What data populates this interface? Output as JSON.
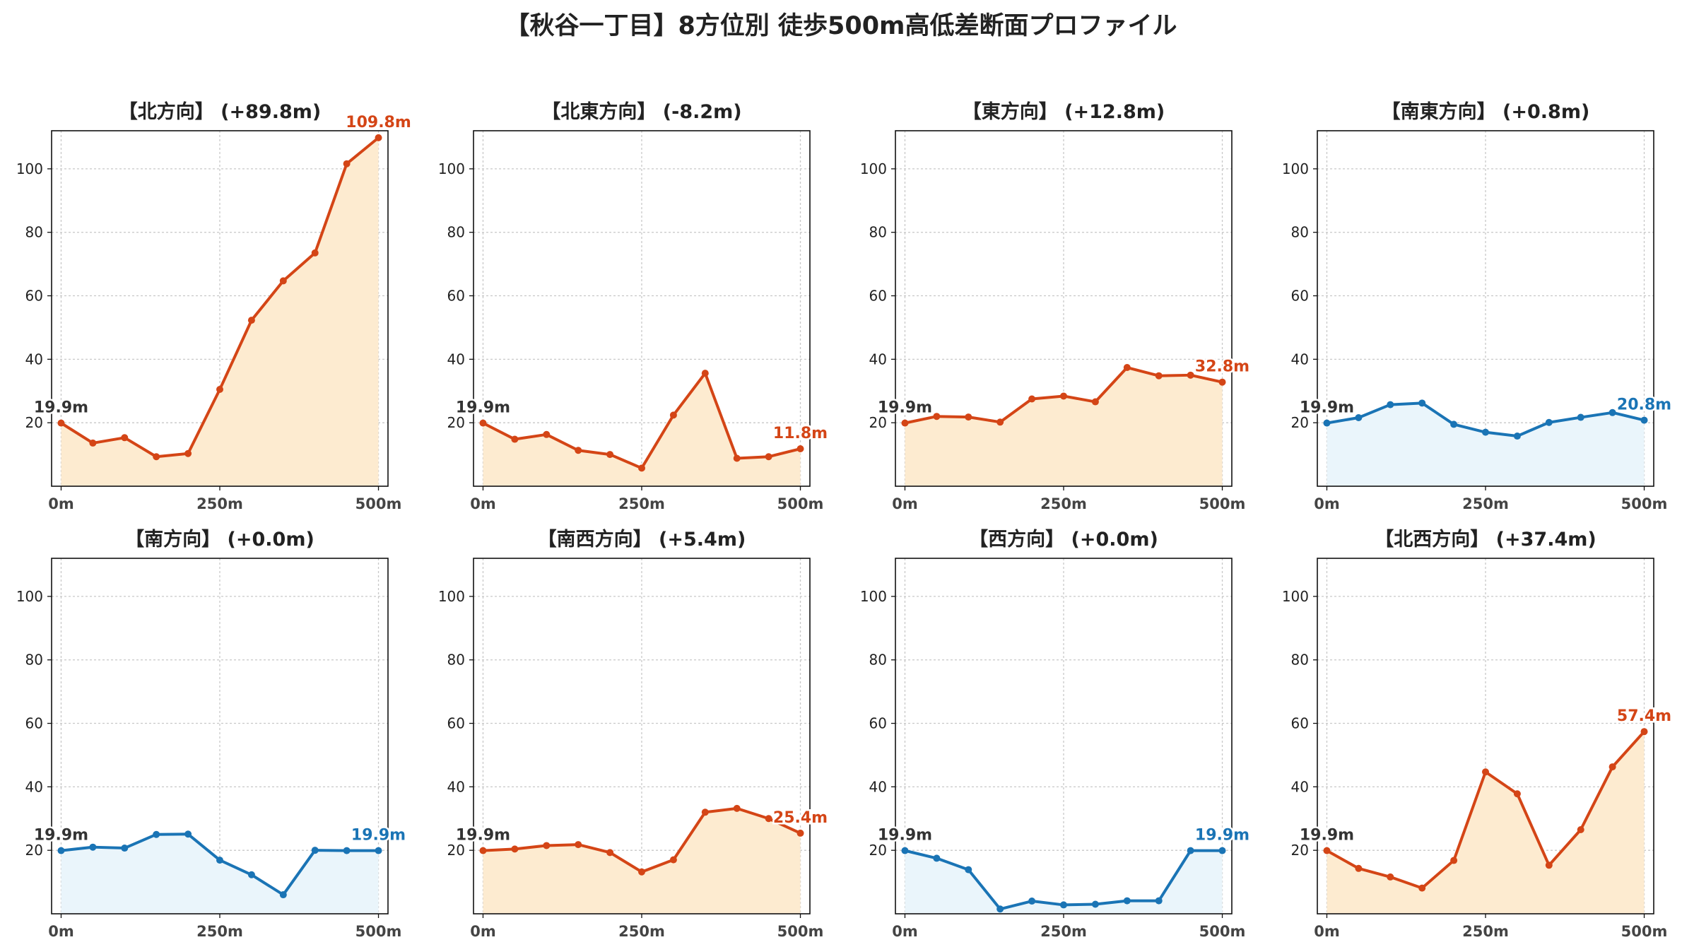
{
  "title": "【秋谷一丁目】8方位別 徒歩500m高低差断面プロファイル",
  "colors": {
    "up_line": "#d44516",
    "up_fill": "#fdebd0",
    "flat_line": "#1a74b5",
    "flat_fill": "#eaf5fb",
    "label_start": "#333333",
    "grid": "#c8c8c8",
    "axis": "#111111"
  },
  "chart_data": [
    {
      "type": "area",
      "title": "【北方向】 (+89.8m)",
      "trend": "up",
      "x": [
        0,
        50,
        100,
        150,
        200,
        250,
        300,
        350,
        400,
        450,
        500
      ],
      "y": [
        19.9,
        13.6,
        15.3,
        9.3,
        10.3,
        30.5,
        52.3,
        64.7,
        73.5,
        101.6,
        109.8
      ],
      "start_label": "19.9m",
      "end_label": "109.8m",
      "xticks": [
        "0m",
        "250m",
        "500m"
      ],
      "yticks": [
        20,
        40,
        60,
        80,
        100
      ],
      "xlim": [
        -15,
        515
      ],
      "ylim": [
        0,
        112
      ],
      "grid": true
    },
    {
      "type": "area",
      "title": "【北東方向】 (-8.2m)",
      "trend": "up",
      "x": [
        0,
        50,
        100,
        150,
        200,
        250,
        300,
        350,
        400,
        450,
        500
      ],
      "y": [
        19.9,
        14.8,
        16.3,
        11.3,
        10.0,
        5.7,
        22.4,
        35.6,
        8.8,
        9.3,
        11.8
      ],
      "start_label": "19.9m",
      "end_label": "11.8m",
      "xticks": [
        "0m",
        "250m",
        "500m"
      ],
      "yticks": [
        20,
        40,
        60,
        80,
        100
      ],
      "xlim": [
        -15,
        515
      ],
      "ylim": [
        0,
        112
      ],
      "grid": true
    },
    {
      "type": "area",
      "title": "【東方向】 (+12.8m)",
      "trend": "up",
      "x": [
        0,
        50,
        100,
        150,
        200,
        250,
        300,
        350,
        400,
        450,
        500
      ],
      "y": [
        19.9,
        22.0,
        21.8,
        20.2,
        27.5,
        28.4,
        26.6,
        37.4,
        34.8,
        35.0,
        32.8
      ],
      "start_label": "19.9m",
      "end_label": "32.8m",
      "xticks": [
        "0m",
        "250m",
        "500m"
      ],
      "yticks": [
        20,
        40,
        60,
        80,
        100
      ],
      "xlim": [
        -15,
        515
      ],
      "ylim": [
        0,
        112
      ],
      "grid": true
    },
    {
      "type": "area",
      "title": "【南東方向】 (+0.8m)",
      "trend": "flat",
      "x": [
        0,
        50,
        100,
        150,
        200,
        250,
        300,
        350,
        400,
        450,
        500
      ],
      "y": [
        19.9,
        21.6,
        25.7,
        26.2,
        19.5,
        17.0,
        15.8,
        20.1,
        21.7,
        23.2,
        20.8
      ],
      "start_label": "19.9m",
      "end_label": "20.8m",
      "xticks": [
        "0m",
        "250m",
        "500m"
      ],
      "yticks": [
        20,
        40,
        60,
        80,
        100
      ],
      "xlim": [
        -15,
        515
      ],
      "ylim": [
        0,
        112
      ],
      "grid": true
    },
    {
      "type": "area",
      "title": "【南方向】 (+0.0m)",
      "trend": "flat",
      "x": [
        0,
        50,
        100,
        150,
        200,
        250,
        300,
        350,
        400,
        450,
        500
      ],
      "y": [
        19.9,
        21.0,
        20.7,
        25.0,
        25.1,
        16.9,
        12.3,
        6.0,
        20.0,
        19.9,
        19.9
      ],
      "start_label": "19.9m",
      "end_label": "19.9m",
      "xticks": [
        "0m",
        "250m",
        "500m"
      ],
      "yticks": [
        20,
        40,
        60,
        80,
        100
      ],
      "xlim": [
        -15,
        515
      ],
      "ylim": [
        0,
        112
      ],
      "grid": true
    },
    {
      "type": "area",
      "title": "【南西方向】 (+5.4m)",
      "trend": "up",
      "x": [
        0,
        50,
        100,
        150,
        200,
        250,
        300,
        350,
        400,
        450,
        500
      ],
      "y": [
        19.9,
        20.4,
        21.5,
        21.8,
        19.3,
        13.2,
        17.0,
        32.0,
        33.2,
        30.0,
        25.4
      ],
      "start_label": "19.9m",
      "end_label": "25.4m",
      "xticks": [
        "0m",
        "250m",
        "500m"
      ],
      "yticks": [
        20,
        40,
        60,
        80,
        100
      ],
      "xlim": [
        -15,
        515
      ],
      "ylim": [
        0,
        112
      ],
      "grid": true
    },
    {
      "type": "area",
      "title": "【西方向】 (+0.0m)",
      "trend": "flat",
      "x": [
        0,
        50,
        100,
        150,
        200,
        250,
        300,
        350,
        400,
        450,
        500
      ],
      "y": [
        19.9,
        17.5,
        13.9,
        1.5,
        4.0,
        2.8,
        3.0,
        4.1,
        4.1,
        19.9,
        19.9
      ],
      "start_label": "19.9m",
      "end_label": "19.9m",
      "xticks": [
        "0m",
        "250m",
        "500m"
      ],
      "yticks": [
        20,
        40,
        60,
        80,
        100
      ],
      "xlim": [
        -15,
        515
      ],
      "ylim": [
        0,
        112
      ],
      "grid": true
    },
    {
      "type": "area",
      "title": "【北西方向】 (+37.4m)",
      "trend": "up",
      "x": [
        0,
        50,
        100,
        150,
        200,
        250,
        300,
        350,
        400,
        450,
        500
      ],
      "y": [
        19.9,
        14.3,
        11.6,
        8.1,
        16.8,
        44.7,
        37.8,
        15.3,
        26.5,
        46.3,
        57.4
      ],
      "start_label": "19.9m",
      "end_label": "57.4m",
      "xticks": [
        "0m",
        "250m",
        "500m"
      ],
      "yticks": [
        20,
        40,
        60,
        80,
        100
      ],
      "xlim": [
        -15,
        515
      ],
      "ylim": [
        0,
        112
      ],
      "grid": true
    }
  ]
}
